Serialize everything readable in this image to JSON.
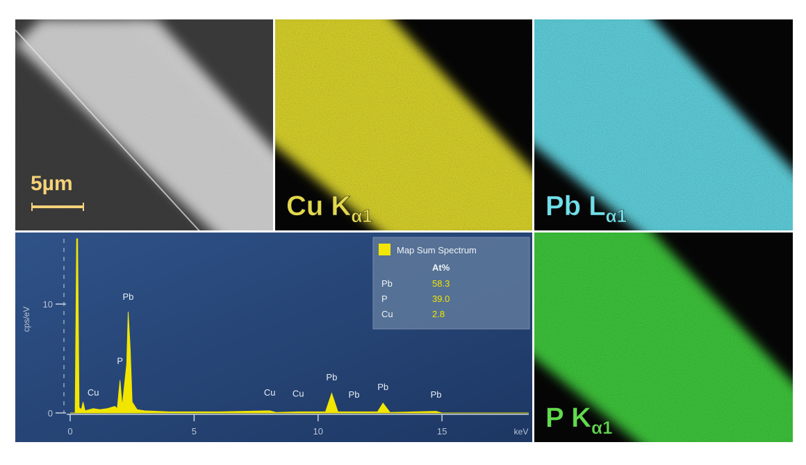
{
  "panels": [
    {
      "label": "5µm",
      "kind": "sem",
      "color": "#c8c8c8"
    },
    {
      "label": "Cu K",
      "subscript": "α1",
      "kind": "map",
      "color": "#d8d22a",
      "label_color": "#e3d84a"
    },
    {
      "label": "Pb L",
      "subscript": "α1",
      "kind": "map",
      "color": "#5fd0dc",
      "label_color": "#6fe0ea"
    },
    {
      "label": "P K",
      "subscript": "α1",
      "kind": "map",
      "color": "#3cc43a",
      "label_color": "#5fdc4a"
    }
  ],
  "chart_data": {
    "type": "area",
    "ylabel": "cps/eV",
    "xlabel": "keV",
    "color": "#f2e600",
    "x": [
      0,
      0.2,
      0.26,
      0.3,
      0.36,
      0.45,
      0.52,
      0.6,
      0.93,
      1.2,
      1.5,
      1.8,
      1.9,
      2.01,
      2.1,
      2.28,
      2.34,
      2.42,
      2.5,
      2.7,
      3.0,
      4,
      6,
      8.05,
      8.3,
      9.2,
      10.3,
      10.55,
      10.8,
      12.4,
      12.62,
      12.9,
      14.76,
      15,
      18.5
    ],
    "values": [
      0,
      0,
      16,
      16,
      0.5,
      0.3,
      1.0,
      0.2,
      0.4,
      0.3,
      0.4,
      0.6,
      0.4,
      3.0,
      0.6,
      4.5,
      9.3,
      6.0,
      1.0,
      0.3,
      0.2,
      0.1,
      0.1,
      0.2,
      0.05,
      0.1,
      0.1,
      1.8,
      0.1,
      0.1,
      0.9,
      0.05,
      0.15,
      0,
      0
    ],
    "xlim": [
      0,
      18.5
    ],
    "ylim": [
      0,
      16
    ],
    "xticks": [
      0,
      5,
      10,
      15
    ],
    "yticks": [
      0,
      10
    ],
    "peak_labels": [
      {
        "text": "Cu",
        "x": 0.93,
        "y": 1.6
      },
      {
        "text": "P",
        "x": 2.01,
        "y": 4.5
      },
      {
        "text": "Pb",
        "x": 2.34,
        "y": 10.4
      },
      {
        "text": "Cu",
        "x": 8.05,
        "y": 1.6
      },
      {
        "text": "Cu",
        "x": 9.2,
        "y": 1.5
      },
      {
        "text": "Pb",
        "x": 10.55,
        "y": 3.0
      },
      {
        "text": "Pb",
        "x": 11.45,
        "y": 1.4
      },
      {
        "text": "Pb",
        "x": 12.62,
        "y": 2.1
      },
      {
        "text": "Pb",
        "x": 14.76,
        "y": 1.4
      }
    ],
    "legend": {
      "title": "Map Sum Spectrum",
      "header": "At%",
      "rows": [
        [
          "Pb",
          "58.3"
        ],
        [
          "P",
          "39.0"
        ],
        [
          "Cu",
          "2.8"
        ]
      ]
    }
  }
}
